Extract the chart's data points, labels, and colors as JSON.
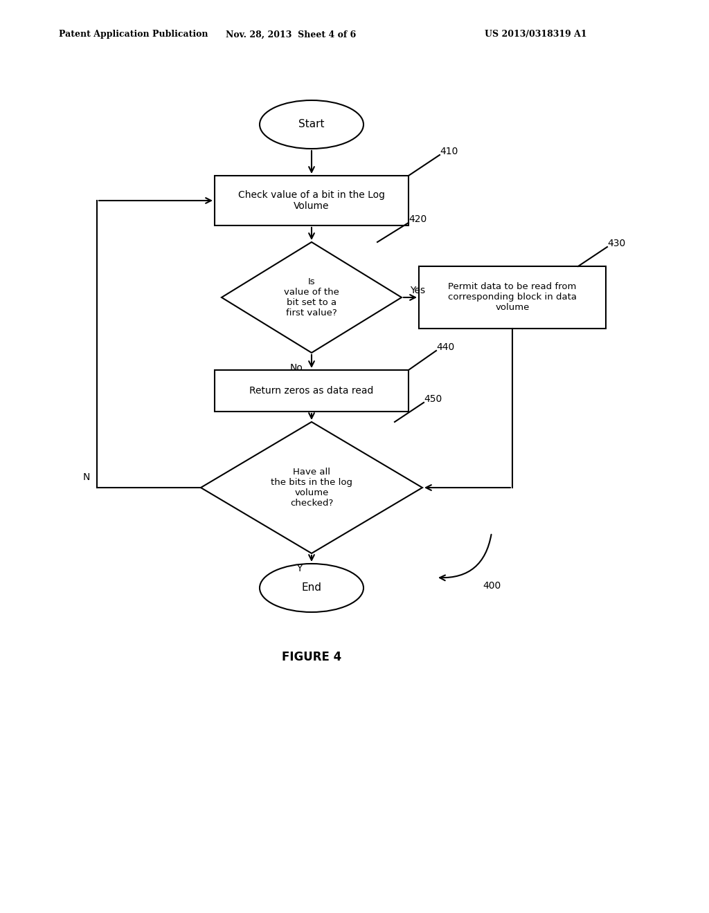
{
  "bg_color": "#ffffff",
  "header_left": "Patent Application Publication",
  "header_mid": "Nov. 28, 2013  Sheet 4 of 6",
  "header_right": "US 2013/0318319 A1",
  "figure_label": "FIGURE 4",
  "start_text": "Start",
  "end_text": "End",
  "box410_text": "Check value of a bit in the Log\nVolume",
  "box410_label": "410",
  "diam420_text": "Is\nvalue of the\nbit set to a\nfirst value?",
  "diam420_label": "420",
  "box430_text": "Permit data to be read from\ncorresponding block in data\nvolume",
  "box430_label": "430",
  "box440_text": "Return zeros as data read",
  "box440_label": "440",
  "diam450_text": "Have all\nthe bits in the log\nvolume\nchecked?",
  "diam450_label": "450",
  "ref400_label": "400",
  "yes_label": "Yes",
  "no_label": "No",
  "n_label": "N",
  "y_label": "Y"
}
